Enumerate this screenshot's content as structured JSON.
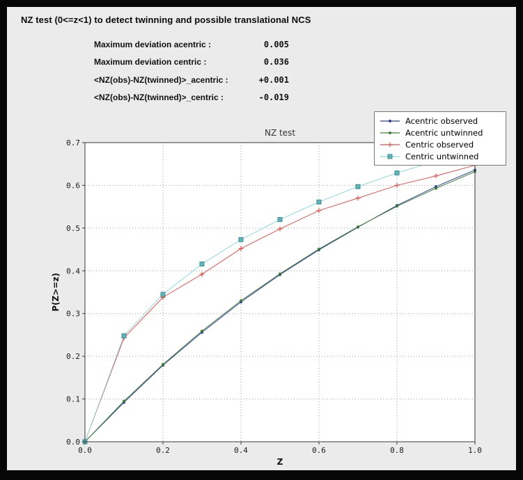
{
  "header": {
    "title": "NZ test (0<=z<1) to detect twinning and possible translational NCS"
  },
  "stats": {
    "rows": [
      {
        "label": "Maximum deviation acentric :",
        "value": "0.005"
      },
      {
        "label": "Maximum deviation centric :",
        "value": "0.036"
      },
      {
        "label": "<NZ(obs)-NZ(twinned)>_acentric :",
        "value": "+0.001"
      },
      {
        "label": "<NZ(obs)-NZ(twinned)>_centric :",
        "value": "-0.019"
      }
    ]
  },
  "chart_data": {
    "type": "line",
    "title": "NZ test",
    "xlabel": "Z",
    "ylabel": "P(Z>=z)",
    "xlim": [
      0.0,
      1.0
    ],
    "ylim": [
      0.0,
      0.7
    ],
    "xticks": [
      0.0,
      0.2,
      0.4,
      0.6,
      0.8,
      1.0
    ],
    "yticks": [
      0.0,
      0.1,
      0.2,
      0.3,
      0.4,
      0.5,
      0.6,
      0.7
    ],
    "grid": true,
    "legend_position": "upper right",
    "plot_bg": "#ffffff",
    "grid_color": "#9e9e9e",
    "frame_color": "#3a3a3a",
    "x": [
      0.0,
      0.1,
      0.2,
      0.3,
      0.4,
      0.5,
      0.6,
      0.7,
      0.8,
      0.9,
      1.0
    ],
    "series": [
      {
        "name": "Acentric observed",
        "color": "#2c3e9e",
        "marker": "dot",
        "values": [
          0.0,
          0.092,
          0.179,
          0.256,
          0.327,
          0.391,
          0.449,
          0.502,
          0.553,
          0.597,
          0.636
        ]
      },
      {
        "name": "Acentric untwinned",
        "color": "#3e7d32",
        "marker": "dot",
        "values": [
          0.0,
          0.095,
          0.181,
          0.259,
          0.33,
          0.393,
          0.451,
          0.503,
          0.551,
          0.593,
          0.632
        ]
      },
      {
        "name": "Centric observed",
        "color": "#e0524a",
        "marker": "plus",
        "values": [
          0.0,
          0.243,
          0.338,
          0.392,
          0.452,
          0.498,
          0.541,
          0.57,
          0.6,
          0.622,
          0.647
        ]
      },
      {
        "name": "Centric untwinned",
        "color": "#8fd8d8",
        "marker": "square",
        "marker_fill": "#5fb6ba",
        "marker_edge": "#3c8f93",
        "values": [
          0.0,
          0.248,
          0.345,
          0.416,
          0.473,
          0.52,
          0.561,
          0.597,
          0.629,
          0.657,
          0.683
        ]
      }
    ]
  }
}
